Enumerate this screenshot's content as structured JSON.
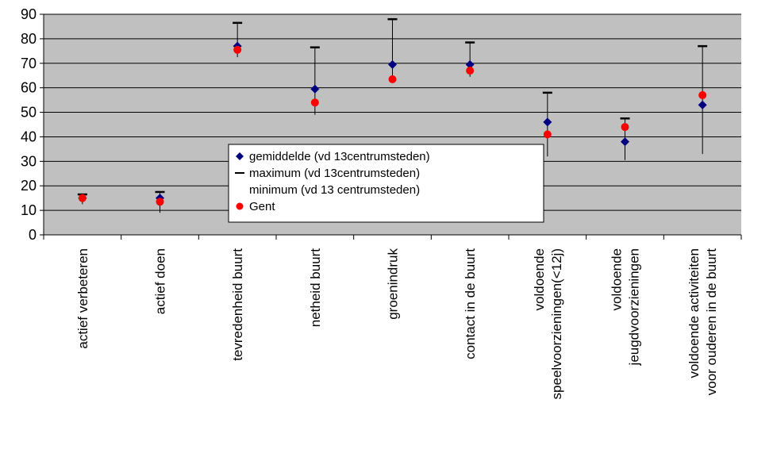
{
  "chart_data": {
    "type": "scatter",
    "ylim": [
      0,
      90
    ],
    "yticks": [
      0,
      10,
      20,
      30,
      40,
      50,
      60,
      70,
      80,
      90
    ],
    "grid": "horizontal",
    "legend_position": "center",
    "categories": [
      [
        "actief verbeteren"
      ],
      [
        "actief doen"
      ],
      [
        "tevredenheid buurt"
      ],
      [
        "netheid buurt"
      ],
      [
        "groenindruk"
      ],
      [
        "contact in de buurt"
      ],
      [
        "voldoende",
        "speelvoorzieningen(<12j)"
      ],
      [
        "voldoende",
        "jeugdvoorzieningen"
      ],
      [
        "voldoende activiteiten",
        "voor ouderen in de buurt"
      ]
    ],
    "series": [
      {
        "name": "gemiddelde (vd 13centrumsteden)",
        "marker": "diamond",
        "color": "#000080",
        "values": [
          15,
          15,
          77,
          59.5,
          69.5,
          69.5,
          46,
          38,
          53
        ]
      },
      {
        "name": "maximum (vd 13centrumsteden)",
        "marker": "dash",
        "color": "#000000",
        "values": [
          16.5,
          17.5,
          86.5,
          76.5,
          88,
          78.5,
          58,
          47.5,
          77
        ]
      },
      {
        "name": "minimum (vd 13 centrumsteden)",
        "marker": "none",
        "color": "#000000",
        "values": [
          12.5,
          9,
          72.5,
          49,
          63,
          64.5,
          32,
          30.5,
          33
        ]
      },
      {
        "name": "Gent",
        "marker": "circle",
        "color": "#ff0000",
        "values": [
          15,
          13.5,
          75.5,
          54,
          63.5,
          67,
          41,
          44,
          57
        ]
      }
    ],
    "colors": {
      "plot_background": "#c0c0c0",
      "gridline": "#000000"
    }
  }
}
